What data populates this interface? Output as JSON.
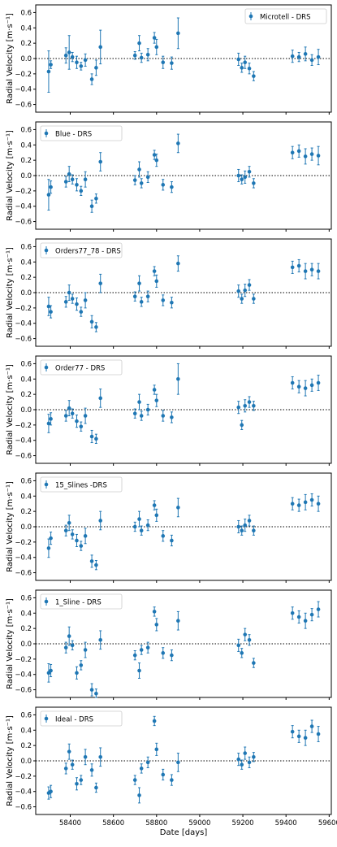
{
  "chart_data": [
    {
      "type": "scatter",
      "legend": "Microtell - DRS",
      "legend_position": "top-right",
      "ylabel": "Radial Velocity [m·s⁻¹]",
      "ylim": [
        -0.7,
        0.7
      ],
      "yticks": [
        "0.6",
        "0.4",
        "0.2",
        "0.0",
        "−0.2",
        "−0.4",
        "−0.6"
      ],
      "reference_line_y": 0,
      "series": [
        {
          "name": "Microtell - DRS",
          "x": [
            58300,
            58310,
            58380,
            58395,
            58410,
            58430,
            58450,
            58470,
            58500,
            58520,
            58540,
            58700,
            58720,
            58730,
            58760,
            58790,
            58800,
            58830,
            58870,
            58900,
            59180,
            59195,
            59210,
            59230,
            59250,
            59430,
            59460,
            59490,
            59520,
            59550
          ],
          "y": [
            -0.17,
            -0.08,
            0.04,
            0.08,
            0.02,
            -0.05,
            -0.1,
            -0.02,
            -0.27,
            -0.12,
            0.15,
            0.04,
            0.2,
            0.01,
            0.05,
            0.27,
            0.15,
            -0.05,
            -0.06,
            0.33,
            -0.01,
            -0.12,
            -0.05,
            -0.13,
            -0.23,
            0.03,
            0.02,
            0.06,
            -0.02,
            0.02
          ],
          "err": [
            0.27,
            0.05,
            0.1,
            0.22,
            0.06,
            0.08,
            0.05,
            0.08,
            0.07,
            0.1,
            0.22,
            0.05,
            0.1,
            0.06,
            0.08,
            0.07,
            0.1,
            0.08,
            0.08,
            0.2,
            0.08,
            0.06,
            0.08,
            0.07,
            0.06,
            0.08,
            0.06,
            0.09,
            0.07,
            0.1
          ]
        }
      ]
    },
    {
      "type": "scatter",
      "legend": "Blue - DRS",
      "legend_position": "top-left",
      "ylabel": "Radial Velocity [m·s⁻¹]",
      "ylim": [
        -0.7,
        0.7
      ],
      "yticks": [
        "0.6",
        "0.4",
        "0.2",
        "0.0",
        "−0.2",
        "−0.4",
        "−0.6"
      ],
      "reference_line_y": 0,
      "series": [
        {
          "name": "Blue - DRS",
          "x": [
            58300,
            58310,
            58380,
            58395,
            58410,
            58430,
            58450,
            58470,
            58500,
            58520,
            58540,
            58700,
            58720,
            58730,
            58760,
            58790,
            58800,
            58830,
            58870,
            58900,
            59180,
            59195,
            59210,
            59230,
            59250,
            59430,
            59460,
            59490,
            59520,
            59550
          ],
          "y": [
            -0.25,
            -0.15,
            -0.08,
            0.02,
            -0.05,
            -0.12,
            -0.2,
            -0.05,
            -0.4,
            -0.3,
            0.18,
            -0.06,
            0.08,
            -0.1,
            -0.02,
            0.27,
            0.2,
            -0.12,
            -0.15,
            0.42,
            0.0,
            -0.05,
            -0.02,
            0.05,
            -0.1,
            0.3,
            0.32,
            0.25,
            0.28,
            0.26
          ],
          "err": [
            0.2,
            0.08,
            0.07,
            0.1,
            0.06,
            0.08,
            0.06,
            0.1,
            0.08,
            0.06,
            0.12,
            0.06,
            0.1,
            0.06,
            0.07,
            0.06,
            0.08,
            0.07,
            0.07,
            0.12,
            0.08,
            0.06,
            0.08,
            0.07,
            0.06,
            0.08,
            0.08,
            0.1,
            0.08,
            0.12
          ]
        }
      ]
    },
    {
      "type": "scatter",
      "legend": "Orders77_78 - DRS",
      "legend_position": "top-left",
      "ylabel": "Radial Velocity [m·s⁻¹]",
      "ylim": [
        -0.7,
        0.7
      ],
      "yticks": [
        "0.6",
        "0.4",
        "0.2",
        "0.0",
        "−0.2",
        "−0.4",
        "−0.6"
      ],
      "reference_line_y": 0,
      "series": [
        {
          "name": "Orders77_78 - DRS",
          "x": [
            58300,
            58310,
            58380,
            58395,
            58410,
            58430,
            58450,
            58470,
            58500,
            58520,
            58540,
            58700,
            58720,
            58730,
            58760,
            58790,
            58800,
            58830,
            58870,
            58900,
            59180,
            59195,
            59210,
            59230,
            59250,
            59430,
            59460,
            59490,
            59520,
            59550
          ],
          "y": [
            -0.18,
            -0.25,
            -0.12,
            0.0,
            -0.08,
            -0.15,
            -0.25,
            -0.1,
            -0.38,
            -0.45,
            0.12,
            -0.05,
            0.12,
            -0.12,
            -0.05,
            0.28,
            0.15,
            -0.1,
            -0.13,
            0.38,
            0.02,
            -0.08,
            0.03,
            0.1,
            -0.08,
            0.33,
            0.35,
            0.28,
            0.3,
            0.28
          ],
          "err": [
            0.12,
            0.08,
            0.07,
            0.1,
            0.06,
            0.08,
            0.06,
            0.1,
            0.08,
            0.06,
            0.12,
            0.06,
            0.1,
            0.06,
            0.07,
            0.06,
            0.08,
            0.07,
            0.07,
            0.1,
            0.08,
            0.06,
            0.08,
            0.07,
            0.06,
            0.08,
            0.08,
            0.1,
            0.08,
            0.1
          ]
        }
      ]
    },
    {
      "type": "scatter",
      "legend": "Order77 - DRS",
      "legend_position": "top-left",
      "ylabel": "Radial Velocity [m·s⁻¹]",
      "ylim": [
        -0.7,
        0.7
      ],
      "yticks": [
        "0.6",
        "0.4",
        "0.2",
        "0.0",
        "−0.2",
        "−0.4",
        "−0.6"
      ],
      "reference_line_y": 0,
      "series": [
        {
          "name": "Order77 - DRS",
          "x": [
            58300,
            58310,
            58380,
            58395,
            58410,
            58430,
            58450,
            58470,
            58500,
            58520,
            58540,
            58700,
            58720,
            58730,
            58760,
            58790,
            58800,
            58830,
            58870,
            58900,
            59180,
            59195,
            59210,
            59230,
            59250,
            59430,
            59460,
            59490,
            59520,
            59550
          ],
          "y": [
            -0.18,
            -0.12,
            -0.08,
            0.02,
            -0.05,
            -0.15,
            -0.22,
            -0.08,
            -0.35,
            -0.38,
            0.15,
            -0.05,
            0.1,
            -0.08,
            0.0,
            0.26,
            0.12,
            -0.08,
            -0.1,
            0.4,
            0.03,
            -0.2,
            0.05,
            0.1,
            0.05,
            0.35,
            0.3,
            0.28,
            0.32,
            0.35
          ],
          "err": [
            0.12,
            0.08,
            0.07,
            0.1,
            0.06,
            0.08,
            0.06,
            0.1,
            0.08,
            0.06,
            0.12,
            0.06,
            0.1,
            0.06,
            0.07,
            0.06,
            0.08,
            0.07,
            0.07,
            0.2,
            0.08,
            0.06,
            0.08,
            0.07,
            0.06,
            0.08,
            0.08,
            0.1,
            0.08,
            0.1
          ]
        }
      ]
    },
    {
      "type": "scatter",
      "legend": "15_Slines -DRS",
      "legend_position": "top-left",
      "ylabel": "Radial Velocity [m·s⁻¹]",
      "ylim": [
        -0.7,
        0.7
      ],
      "yticks": [
        "0.6",
        "0.4",
        "0.2",
        "0.0",
        "−0.2",
        "−0.4",
        "−0.6"
      ],
      "reference_line_y": 0,
      "series": [
        {
          "name": "15_Slines -DRS",
          "x": [
            58300,
            58310,
            58380,
            58395,
            58410,
            58430,
            58450,
            58470,
            58500,
            58520,
            58540,
            58700,
            58720,
            58730,
            58760,
            58790,
            58800,
            58830,
            58870,
            58900,
            59180,
            59195,
            59210,
            59230,
            59250,
            59430,
            59460,
            59490,
            59520,
            59550
          ],
          "y": [
            -0.28,
            -0.15,
            -0.05,
            0.05,
            -0.1,
            -0.18,
            -0.25,
            -0.12,
            -0.45,
            -0.5,
            0.08,
            0.0,
            0.1,
            -0.05,
            0.02,
            0.28,
            0.15,
            -0.12,
            -0.18,
            0.25,
            0.0,
            -0.05,
            0.02,
            0.08,
            -0.05,
            0.3,
            0.28,
            0.32,
            0.35,
            0.3
          ],
          "err": [
            0.12,
            0.08,
            0.07,
            0.1,
            0.06,
            0.08,
            0.06,
            0.1,
            0.08,
            0.06,
            0.12,
            0.06,
            0.1,
            0.06,
            0.07,
            0.06,
            0.08,
            0.07,
            0.07,
            0.12,
            0.08,
            0.06,
            0.08,
            0.07,
            0.06,
            0.08,
            0.08,
            0.1,
            0.08,
            0.1
          ]
        }
      ]
    },
    {
      "type": "scatter",
      "legend": "1_Sline - DRS",
      "legend_position": "top-left",
      "ylabel": "Radial Velocity [m·s⁻¹]",
      "ylim": [
        -0.7,
        0.7
      ],
      "yticks": [
        "0.6",
        "0.4",
        "0.2",
        "0.0",
        "−0.2",
        "−0.4",
        "−0.6"
      ],
      "reference_line_y": 0,
      "series": [
        {
          "name": "1_Sline - DRS",
          "x": [
            58300,
            58310,
            58380,
            58395,
            58410,
            58430,
            58450,
            58470,
            58500,
            58520,
            58540,
            58700,
            58720,
            58730,
            58760,
            58790,
            58800,
            58830,
            58870,
            58900,
            59180,
            59195,
            59210,
            59230,
            59250,
            59430,
            59460,
            59490,
            59520,
            59550
          ],
          "y": [
            -0.38,
            -0.35,
            -0.05,
            0.1,
            -0.02,
            -0.38,
            -0.28,
            -0.08,
            -0.6,
            -0.65,
            0.05,
            -0.15,
            -0.35,
            -0.08,
            -0.05,
            0.42,
            0.25,
            -0.12,
            -0.15,
            0.3,
            -0.02,
            -0.12,
            0.12,
            0.05,
            -0.25,
            0.4,
            0.35,
            0.3,
            0.38,
            0.45
          ],
          "err": [
            0.12,
            0.08,
            0.07,
            0.12,
            0.06,
            0.08,
            0.06,
            0.1,
            0.08,
            0.06,
            0.12,
            0.06,
            0.1,
            0.06,
            0.07,
            0.06,
            0.08,
            0.07,
            0.07,
            0.12,
            0.08,
            0.06,
            0.08,
            0.07,
            0.06,
            0.08,
            0.08,
            0.1,
            0.08,
            0.1
          ]
        }
      ]
    },
    {
      "type": "scatter",
      "legend": "Ideal - DRS",
      "legend_position": "top-left",
      "ylabel": "Radial Velocity [m·s⁻¹]",
      "xlabel": "Date [days]",
      "ylim": [
        -0.7,
        0.7
      ],
      "yticks": [
        "0.6",
        "0.4",
        "0.2",
        "0.0",
        "−0.2",
        "−0.4",
        "−0.6"
      ],
      "xticks": [
        58400,
        58600,
        58800,
        59000,
        59200,
        59400,
        59600
      ],
      "reference_line_y": 0,
      "series": [
        {
          "name": "Ideal - DRS",
          "x": [
            58300,
            58310,
            58380,
            58395,
            58410,
            58430,
            58450,
            58470,
            58500,
            58520,
            58540,
            58700,
            58720,
            58730,
            58760,
            58790,
            58800,
            58830,
            58870,
            58900,
            59180,
            59195,
            59210,
            59230,
            59250,
            59430,
            59460,
            59490,
            59520,
            59550
          ],
          "y": [
            -0.42,
            -0.4,
            -0.1,
            0.12,
            -0.05,
            -0.3,
            -0.25,
            0.05,
            -0.12,
            -0.35,
            0.05,
            -0.25,
            -0.45,
            -0.1,
            -0.02,
            0.52,
            0.15,
            -0.18,
            -0.25,
            -0.02,
            0.02,
            -0.05,
            0.1,
            -0.02,
            0.05,
            0.38,
            0.32,
            0.3,
            0.45,
            0.35
          ],
          "err": [
            0.08,
            0.08,
            0.07,
            0.1,
            0.06,
            0.08,
            0.06,
            0.1,
            0.08,
            0.06,
            0.12,
            0.06,
            0.1,
            0.06,
            0.07,
            0.06,
            0.08,
            0.07,
            0.07,
            0.12,
            0.08,
            0.06,
            0.08,
            0.07,
            0.06,
            0.08,
            0.08,
            0.1,
            0.08,
            0.1
          ]
        }
      ]
    }
  ],
  "colors": {
    "series": "#1f77b4",
    "axis": "#000000",
    "zero_line": "#000000"
  }
}
